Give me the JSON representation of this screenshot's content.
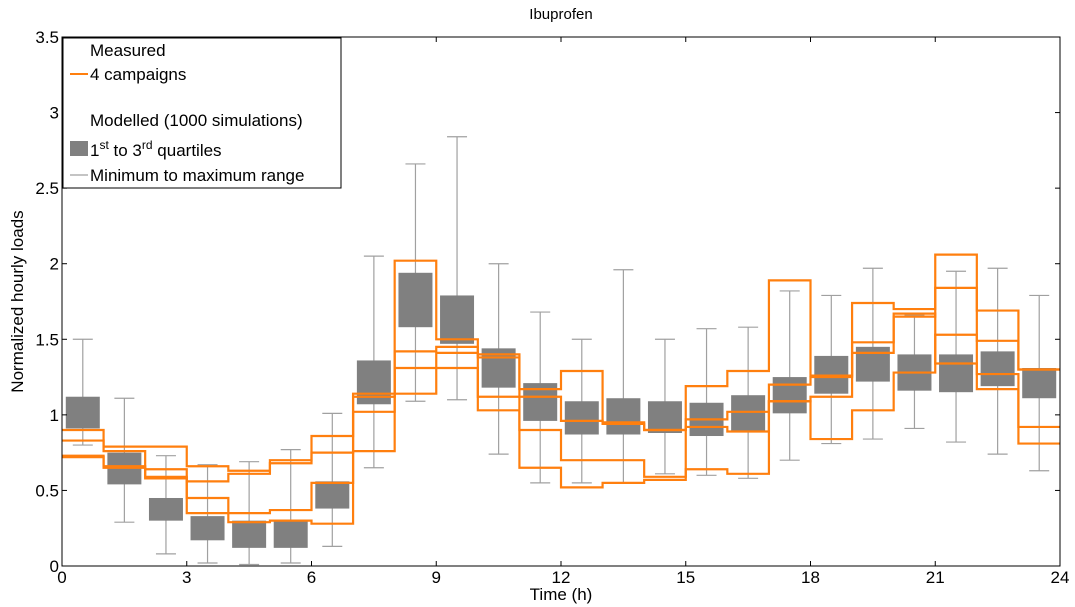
{
  "chart_data": {
    "type": "box",
    "title": "Ibuprofen",
    "xlabel": "Time (h)",
    "ylabel": "Normalized hourly loads",
    "xlim": [
      0,
      24
    ],
    "ylim": [
      0,
      3.5
    ],
    "xticks": [
      "0",
      "3",
      "6",
      "9",
      "12",
      "15",
      "18",
      "21",
      "24"
    ],
    "yticks": [
      "0",
      "0.5",
      "1",
      "1.5",
      "2",
      "2.5",
      "3",
      "3.5"
    ],
    "grid": false,
    "legend_position": "top-left",
    "legend": {
      "measured_header": "Measured",
      "measured_series": "4 campaigns",
      "modelled_header": "Modelled (1000 simulations)",
      "quartile_entry_prefix": "1",
      "quartile_entry_sup1": "st",
      "quartile_entry_mid": " to 3",
      "quartile_entry_sup2": "rd",
      "quartile_entry_suffix": " quartiles",
      "range_entry": "Minimum to maximum range"
    },
    "modelled_boxes": [
      {
        "hour": 0.5,
        "min": 0.8,
        "q1": 0.91,
        "q3": 1.12,
        "max": 1.5
      },
      {
        "hour": 1.5,
        "min": 0.29,
        "q1": 0.54,
        "q3": 0.75,
        "max": 1.11
      },
      {
        "hour": 2.5,
        "min": 0.08,
        "q1": 0.3,
        "q3": 0.45,
        "max": 0.73
      },
      {
        "hour": 3.5,
        "min": 0.02,
        "q1": 0.17,
        "q3": 0.33,
        "max": 0.67
      },
      {
        "hour": 4.5,
        "min": 0.01,
        "q1": 0.12,
        "q3": 0.3,
        "max": 0.69
      },
      {
        "hour": 5.5,
        "min": 0.02,
        "q1": 0.12,
        "q3": 0.3,
        "max": 0.77
      },
      {
        "hour": 6.5,
        "min": 0.13,
        "q1": 0.38,
        "q3": 0.56,
        "max": 1.01
      },
      {
        "hour": 7.5,
        "min": 0.65,
        "q1": 1.07,
        "q3": 1.36,
        "max": 2.05
      },
      {
        "hour": 8.5,
        "min": 1.09,
        "q1": 1.58,
        "q3": 1.94,
        "max": 2.66
      },
      {
        "hour": 9.5,
        "min": 1.1,
        "q1": 1.47,
        "q3": 1.79,
        "max": 2.84
      },
      {
        "hour": 10.5,
        "min": 0.74,
        "q1": 1.18,
        "q3": 1.44,
        "max": 2.0
      },
      {
        "hour": 11.5,
        "min": 0.55,
        "q1": 0.96,
        "q3": 1.21,
        "max": 1.68
      },
      {
        "hour": 12.5,
        "min": 0.55,
        "q1": 0.87,
        "q3": 1.09,
        "max": 1.5
      },
      {
        "hour": 13.5,
        "min": 0.55,
        "q1": 0.87,
        "q3": 1.11,
        "max": 1.96
      },
      {
        "hour": 14.5,
        "min": 0.61,
        "q1": 0.88,
        "q3": 1.09,
        "max": 1.5
      },
      {
        "hour": 15.5,
        "min": 0.6,
        "q1": 0.86,
        "q3": 1.08,
        "max": 1.57
      },
      {
        "hour": 16.5,
        "min": 0.58,
        "q1": 0.89,
        "q3": 1.13,
        "max": 1.58
      },
      {
        "hour": 17.5,
        "min": 0.7,
        "q1": 1.01,
        "q3": 1.25,
        "max": 1.82
      },
      {
        "hour": 18.5,
        "min": 0.81,
        "q1": 1.14,
        "q3": 1.39,
        "max": 1.79
      },
      {
        "hour": 19.5,
        "min": 0.84,
        "q1": 1.22,
        "q3": 1.45,
        "max": 1.97
      },
      {
        "hour": 20.5,
        "min": 0.91,
        "q1": 1.16,
        "q3": 1.4,
        "max": 1.66
      },
      {
        "hour": 21.5,
        "min": 0.82,
        "q1": 1.15,
        "q3": 1.4,
        "max": 1.95
      },
      {
        "hour": 22.5,
        "min": 0.74,
        "q1": 1.19,
        "q3": 1.42,
        "max": 1.97
      },
      {
        "hour": 23.5,
        "min": 0.63,
        "q1": 1.11,
        "q3": 1.31,
        "max": 1.79
      }
    ],
    "measured_series": [
      {
        "values": [
          0.9,
          0.79,
          0.79,
          0.66,
          0.63,
          0.7,
          0.86,
          1.14,
          2.02,
          1.5,
          1.4,
          1.17,
          1.29,
          0.95,
          0.9,
          1.19,
          1.29,
          1.89,
          1.26,
          1.74,
          1.7,
          2.06,
          1.69,
          1.3
        ]
      },
      {
        "values": [
          0.83,
          0.76,
          0.64,
          0.56,
          0.61,
          0.68,
          0.75,
          1.12,
          1.42,
          1.45,
          1.38,
          1.12,
          0.96,
          0.94,
          0.9,
          0.97,
          1.02,
          1.2,
          1.25,
          1.48,
          1.65,
          1.84,
          1.49,
          1.3
        ]
      },
      {
        "values": [
          0.73,
          0.65,
          0.58,
          0.45,
          0.35,
          0.37,
          0.55,
          1.02,
          1.31,
          1.41,
          1.12,
          0.9,
          0.7,
          0.7,
          0.59,
          0.92,
          0.89,
          1.09,
          0.84,
          1.03,
          1.28,
          1.53,
          1.27,
          0.92
        ]
      },
      {
        "values": [
          0.72,
          0.66,
          0.59,
          0.35,
          0.29,
          0.3,
          0.28,
          0.76,
          1.14,
          1.31,
          1.03,
          0.65,
          0.52,
          0.55,
          0.57,
          0.64,
          0.61,
          1.09,
          1.12,
          1.41,
          1.67,
          1.34,
          1.17,
          0.81
        ]
      }
    ],
    "colors": {
      "measured": "#ff7f0e",
      "box_fill": "#808080",
      "whisker": "#a0a0a0",
      "axis": "#000000"
    }
  }
}
